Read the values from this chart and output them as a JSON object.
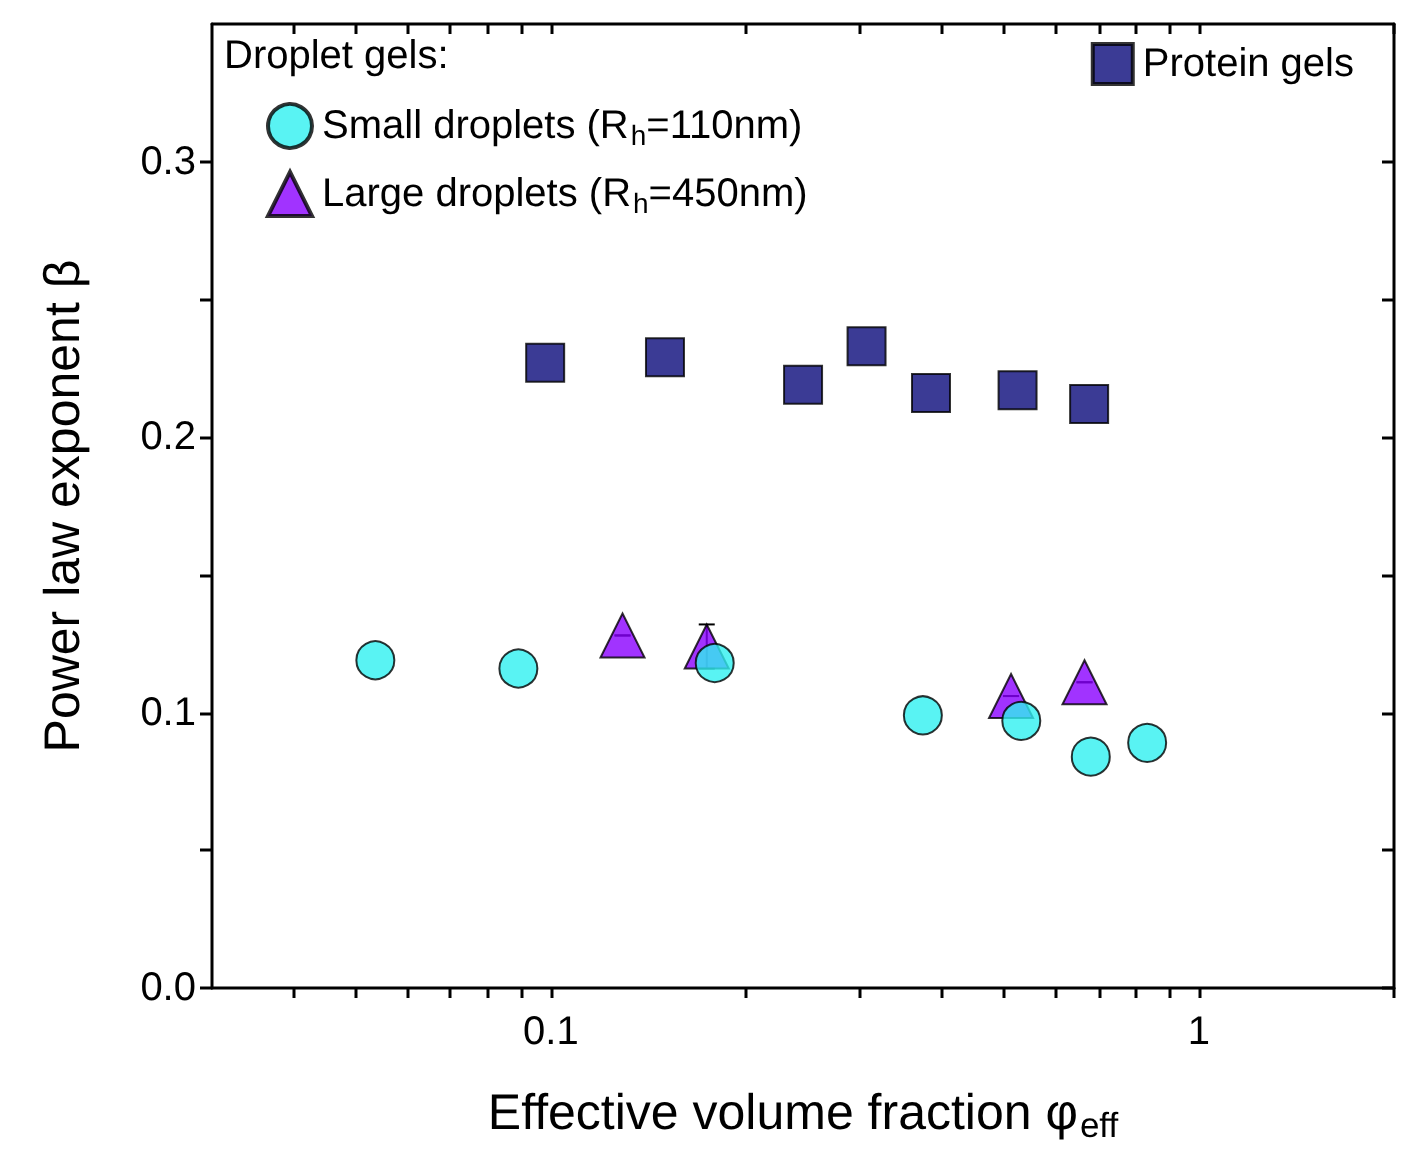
{
  "chart_data": {
    "type": "scatter",
    "xlabel": "Effective volume fraction φ$_{eff}$",
    "ylabel": "Power law exponent β",
    "legend_title": "Droplet gels:",
    "legend": "top",
    "log": "x",
    "grid": false,
    "xlim": [
      0.03,
      2
    ],
    "xticks": [
      {
        "value": 0.04,
        "label": null
      },
      {
        "value": 0.05,
        "label": null
      },
      {
        "value": 0.06,
        "label": null
      },
      {
        "value": 0.07,
        "label": null
      },
      {
        "value": 0.08,
        "label": null
      },
      {
        "value": 0.09,
        "label": null
      },
      0.1,
      {
        "value": 0.2,
        "label": null
      },
      {
        "value": 0.3,
        "label": null
      },
      {
        "value": 0.4,
        "label": null
      },
      {
        "value": 0.5,
        "label": null
      },
      {
        "value": 0.6,
        "label": null
      },
      {
        "value": 0.7,
        "label": null
      },
      {
        "value": 0.8,
        "label": null
      },
      {
        "value": 0.9,
        "label": null
      },
      1,
      {
        "value": 2,
        "label": null
      }
    ],
    "ylim": [
      0,
      0.35
    ],
    "yticks": [
      {
        "value": 0,
        "label": "0.0"
      },
      {
        "value": 0.05,
        "label": null
      },
      0.1,
      {
        "value": 0.15,
        "label": null
      },
      0.2,
      {
        "value": 0.25,
        "label": null
      },
      0.3
    ],
    "series": [
      {
        "name": "Protein gels",
        "color": "#0a0a7a",
        "marker": "square",
        "x": [
          0.098,
          0.15,
          0.245,
          0.307,
          0.386,
          0.525,
          0.677
        ],
        "values": [
          0.227,
          0.229,
          0.219,
          0.233,
          0.216,
          0.217,
          0.212
        ]
      },
      {
        "name": "Small droplets (R$_{h}$=110nm)",
        "color": "#2ff0f0",
        "marker": "circle",
        "x": [
          0.0536,
          0.0891,
          0.179,
          0.375,
          0.532,
          0.681,
          0.832
        ],
        "values": [
          0.119,
          0.116,
          0.118,
          0.099,
          0.097,
          0.084,
          0.089
        ]
      },
      {
        "name": "Large droplets (R$_{h}$=450nm)",
        "color": "#8a00ff",
        "marker": "triangle",
        "x": [
          0.129,
          0.174,
          0.513,
          0.666
        ],
        "values": [
          0.128,
          0.124,
          0.106,
          0.111
        ],
        "errors": [
          null,
          0.008,
          null,
          null
        ]
      }
    ]
  }
}
